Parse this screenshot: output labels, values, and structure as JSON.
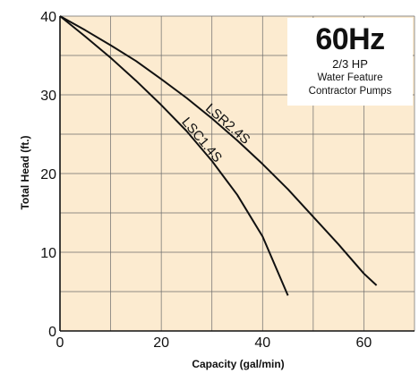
{
  "chart_data": {
    "type": "line",
    "title": "60Hz",
    "subtitle": [
      "2/3 HP",
      "Water Feature",
      "Contractor Pumps"
    ],
    "xlabel": "Capacity (gal/min)",
    "ylabel": "Total Head (ft.)",
    "xlim": [
      0,
      70
    ],
    "ylim": [
      0,
      40
    ],
    "xticks": [
      0,
      20,
      40,
      60
    ],
    "yticks": [
      0,
      10,
      20,
      30,
      40
    ],
    "grid": true,
    "background": "#fcebd0",
    "line_color": "#111111",
    "series": [
      {
        "name": "LSR2.4S",
        "x": [
          0,
          5,
          10,
          15,
          20,
          25,
          30,
          35,
          40,
          45,
          50,
          55,
          60,
          62.5
        ],
        "y": [
          40,
          38.2,
          36.3,
          34.3,
          32.0,
          29.6,
          27.0,
          24.2,
          21.2,
          18.0,
          14.5,
          11.0,
          7.3,
          5.8
        ]
      },
      {
        "name": "LSC1.4S",
        "x": [
          0,
          5,
          10,
          15,
          20,
          25,
          30,
          35,
          40,
          45
        ],
        "y": [
          40,
          37.4,
          34.7,
          31.8,
          28.7,
          25.4,
          21.6,
          17.3,
          12.0,
          4.5
        ]
      }
    ]
  }
}
